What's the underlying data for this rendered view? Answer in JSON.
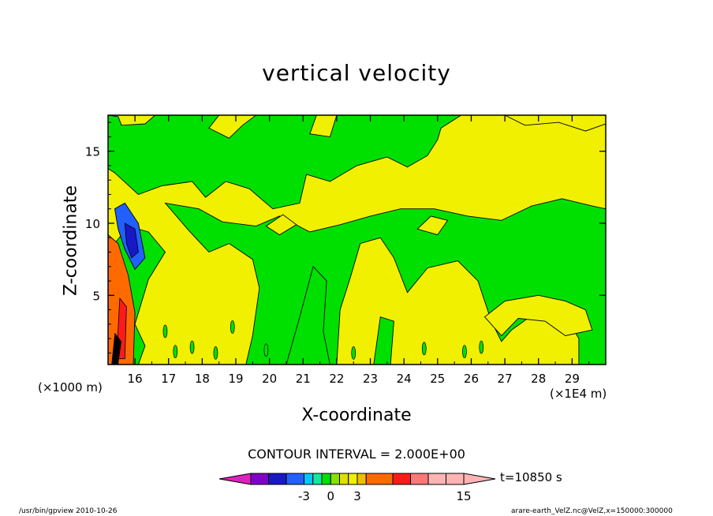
{
  "chart_data": {
    "type": "heatmap",
    "title": "vertical velocity",
    "xlabel": "X-coordinate",
    "ylabel": "Z-coordinate",
    "x_unit_label": "(×1E4 m)",
    "z_unit_label": "(×1000 m)",
    "xlim": [
      15.2,
      30.0
    ],
    "ylim": [
      0.2,
      17.5
    ],
    "x_ticks": [
      16,
      17,
      18,
      19,
      20,
      21,
      22,
      23,
      24,
      25,
      26,
      27,
      28,
      29
    ],
    "y_ticks": [
      5,
      10,
      15
    ],
    "contour_interval_text": "CONTOUR INTERVAL = 2.000E+00",
    "time_label": "t=10850 s",
    "colorbar": {
      "tick_labels": [
        "-3",
        "0",
        "3",
        "15"
      ],
      "levels": [
        -9,
        -7,
        -5,
        -3,
        -2,
        -1,
        0,
        1,
        2,
        3,
        4,
        7,
        9,
        11,
        13,
        15
      ],
      "colors": [
        "#e020c0",
        "#8000c8",
        "#1818c8",
        "#2060ff",
        "#00c8ff",
        "#10e8a0",
        "#00e000",
        "#88e000",
        "#e0e000",
        "#f0f000",
        "#f0c000",
        "#ff6a00",
        "#ff1a1a",
        "#ff7878",
        "#ffb4b4"
      ]
    },
    "field_colors": {
      "positive_weak": "#f0f000",
      "near_zero": "#00e000",
      "negative": "#2060ff",
      "negative_strong": "#1818c8",
      "positive_strong": "#ff6a00",
      "positive_max": "#ff1a1a"
    }
  },
  "footer": {
    "left": "/usr/bin/gpview   2010-10-26",
    "right": "arare-earth_VelZ.nc@VelZ,x=150000:300000"
  }
}
